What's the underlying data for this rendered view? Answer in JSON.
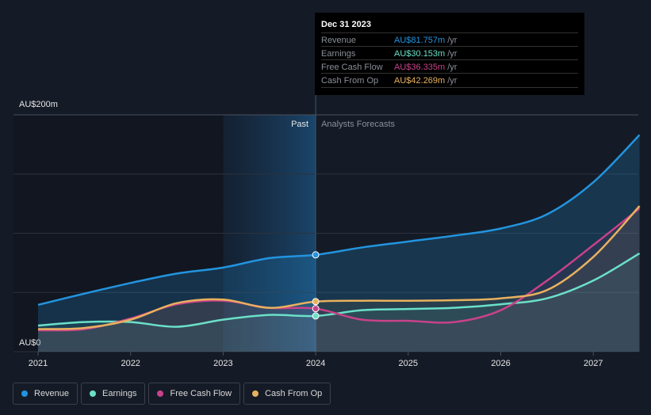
{
  "chart_data": {
    "type": "line",
    "y_axis_labels": {
      "top": "AU$200m",
      "bottom": "AU$0"
    },
    "ylim": [
      0,
      200
    ],
    "x_ticks": [
      "2021",
      "2022",
      "2023",
      "2024",
      "2025",
      "2026",
      "2027"
    ],
    "region_labels": {
      "past": "Past",
      "forecast": "Analysts Forecasts"
    },
    "grid": true,
    "x": [
      2021,
      2021.5,
      2022,
      2022.5,
      2023,
      2023.5,
      2024,
      2024.5,
      2025,
      2025.5,
      2026,
      2026.5,
      2027,
      2027.5
    ],
    "series": [
      {
        "name": "Revenue",
        "color": "#2394df",
        "values": [
          39.5,
          49,
          58,
          66,
          71,
          79,
          81.757,
          88,
          93,
          98,
          104,
          116,
          143,
          183
        ]
      },
      {
        "name": "Earnings",
        "color": "#6be0c8",
        "values": [
          22,
          25,
          25,
          21,
          27,
          31,
          30.153,
          35,
          36,
          37,
          40,
          45,
          60,
          83
        ]
      },
      {
        "name": "Free Cash Flow",
        "color": "#c8428a",
        "values": [
          18,
          19,
          28,
          40,
          43,
          37,
          36.335,
          27,
          26,
          25,
          35,
          60,
          90,
          121
        ]
      },
      {
        "name": "Cash From Op",
        "color": "#e9b15e",
        "values": [
          19,
          20,
          27,
          41,
          44,
          37,
          42.269,
          43,
          43,
          43.5,
          45,
          52,
          80,
          123
        ]
      }
    ]
  },
  "tooltip": {
    "date": "Dec 31 2023",
    "rows": [
      {
        "label": "Revenue",
        "value": "AU$81.757m",
        "unit": "/yr",
        "color": "#2394df"
      },
      {
        "label": "Earnings",
        "value": "AU$30.153m",
        "unit": "/yr",
        "color": "#6be0c8"
      },
      {
        "label": "Free Cash Flow",
        "value": "AU$36.335m",
        "unit": "/yr",
        "color": "#c8428a"
      },
      {
        "label": "Cash From Op",
        "value": "AU$42.269m",
        "unit": "/yr",
        "color": "#e9b15e"
      }
    ]
  },
  "legend": [
    {
      "label": "Revenue",
      "color": "#2394df"
    },
    {
      "label": "Earnings",
      "color": "#6be0c8"
    },
    {
      "label": "Free Cash Flow",
      "color": "#c8428a"
    },
    {
      "label": "Cash From Op",
      "color": "#e9b15e"
    }
  ]
}
